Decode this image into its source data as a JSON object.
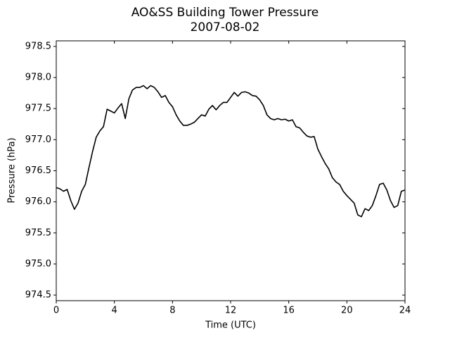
{
  "chart_data": {
    "type": "line",
    "title": "AO&SS Building Tower Pressure",
    "subtitle": "2007-08-02",
    "x_label": "Time (UTC)",
    "y_label": "Pressure (hPa)",
    "xlim": [
      0,
      24
    ],
    "xticks": [
      0,
      4,
      8,
      12,
      16,
      20,
      24
    ],
    "ylim": [
      974.41,
      978.59
    ],
    "yticks": [
      974.5,
      {
        "value": 975,
        "label": "975.0"
      },
      975.5,
      {
        "value": 976,
        "label": "976.0"
      },
      976.5,
      {
        "value": 977,
        "label": "977.0"
      },
      977.5,
      {
        "value": 978,
        "label": "978.0"
      },
      978.5
    ],
    "grid": false,
    "x": [
      0,
      0.25,
      0.5,
      0.75,
      1,
      1.25,
      1.5,
      1.75,
      2,
      2.25,
      2.5,
      2.75,
      3,
      3.25,
      3.5,
      3.75,
      4,
      4.25,
      4.5,
      4.75,
      5,
      5.25,
      5.5,
      5.75,
      6,
      6.25,
      6.5,
      6.75,
      7,
      7.25,
      7.5,
      7.75,
      8,
      8.25,
      8.5,
      8.75,
      9,
      9.25,
      9.5,
      9.75,
      10,
      10.25,
      10.5,
      10.75,
      11,
      11.25,
      11.5,
      11.75,
      12,
      12.25,
      12.5,
      12.75,
      13,
      13.25,
      13.5,
      13.75,
      14,
      14.25,
      14.5,
      14.75,
      15,
      15.25,
      15.5,
      15.75,
      16,
      16.25,
      16.5,
      16.75,
      17,
      17.25,
      17.5,
      17.75,
      18,
      18.25,
      18.5,
      18.75,
      19,
      19.25,
      19.5,
      19.75,
      20,
      20.25,
      20.5,
      20.75,
      21,
      21.25,
      21.5,
      21.75,
      22,
      22.25,
      22.5,
      22.75,
      23,
      23.25,
      23.5,
      23.75,
      24
    ],
    "series": [
      {
        "color": "#000000",
        "values": [
          976.23,
          976.21,
          976.17,
          976.2,
          976.02,
          975.88,
          975.98,
          976.17,
          976.28,
          976.55,
          976.81,
          977.04,
          977.14,
          977.21,
          977.49,
          977.46,
          977.43,
          977.51,
          977.58,
          977.34,
          977.66,
          977.8,
          977.84,
          977.84,
          977.87,
          977.82,
          977.87,
          977.84,
          977.77,
          977.68,
          977.71,
          977.6,
          977.53,
          977.4,
          977.3,
          977.23,
          977.23,
          977.25,
          977.28,
          977.34,
          977.4,
          977.38,
          977.49,
          977.55,
          977.48,
          977.55,
          977.6,
          977.6,
          977.68,
          977.76,
          977.7,
          977.76,
          977.77,
          977.75,
          977.71,
          977.7,
          977.64,
          977.55,
          977.4,
          977.34,
          977.32,
          977.34,
          977.32,
          977.33,
          977.3,
          977.32,
          977.21,
          977.19,
          977.12,
          977.06,
          977.04,
          977.05,
          976.85,
          976.73,
          976.62,
          976.53,
          976.39,
          976.32,
          976.28,
          976.17,
          976.1,
          976.04,
          975.98,
          975.79,
          975.76,
          975.89,
          975.86,
          975.94,
          976.1,
          976.28,
          976.3,
          976.19,
          976.02,
          975.91,
          975.94,
          976.17,
          976.19
        ]
      }
    ]
  }
}
